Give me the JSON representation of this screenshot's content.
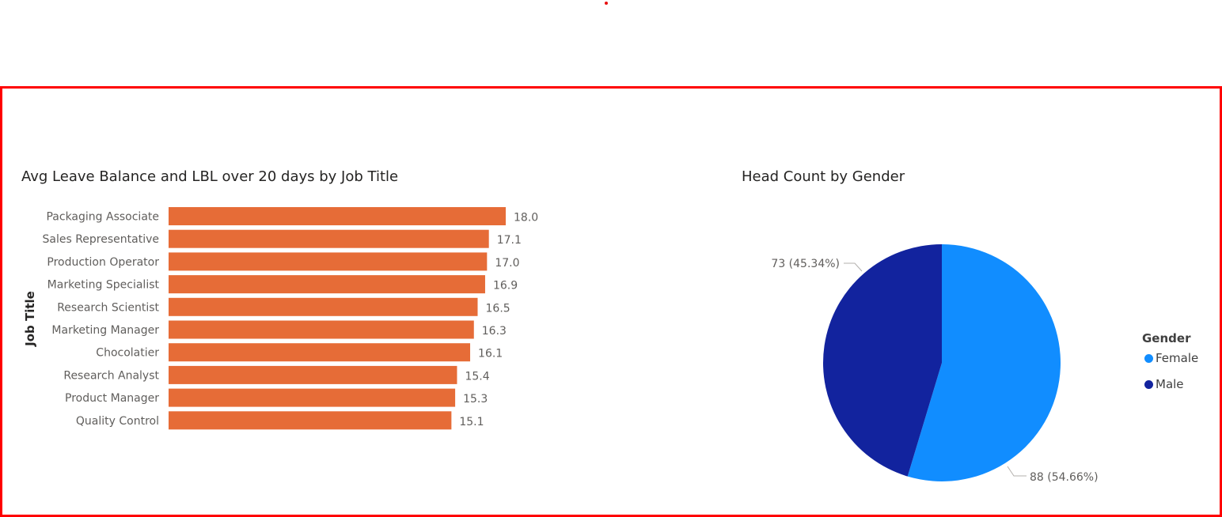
{
  "colors": {
    "frame": "#ff0000",
    "bar": "#e66c37",
    "female": "#118dff",
    "male": "#12239e"
  },
  "chart_data": [
    {
      "type": "bar",
      "orientation": "horizontal",
      "title": "Avg Leave Balance and LBL over 20 days by Job Title",
      "ylabel": "Job Title",
      "xlim": [
        0,
        18.0
      ],
      "grid": false,
      "categories": [
        "Packaging Associate",
        "Sales Representative",
        "Production Operator",
        "Marketing Specialist",
        "Research Scientist",
        "Marketing Manager",
        "Chocolatier",
        "Research Analyst",
        "Product Manager",
        "Quality Control"
      ],
      "values": [
        18.0,
        17.1,
        17.0,
        16.9,
        16.5,
        16.3,
        16.1,
        15.4,
        15.3,
        15.1
      ],
      "value_labels": [
        "18.0",
        "17.1",
        "17.0",
        "16.9",
        "16.5",
        "16.3",
        "16.1",
        "15.4",
        "15.3",
        "15.1"
      ]
    },
    {
      "type": "pie",
      "title": "Head Count by Gender",
      "legend_title": "Gender",
      "legend_position": "right",
      "categories": [
        "Female",
        "Male"
      ],
      "values": [
        88,
        73
      ],
      "percentages": [
        54.66,
        45.34
      ],
      "slice_labels": [
        "88 (54.66%)",
        "73 (45.34%)"
      ]
    }
  ]
}
